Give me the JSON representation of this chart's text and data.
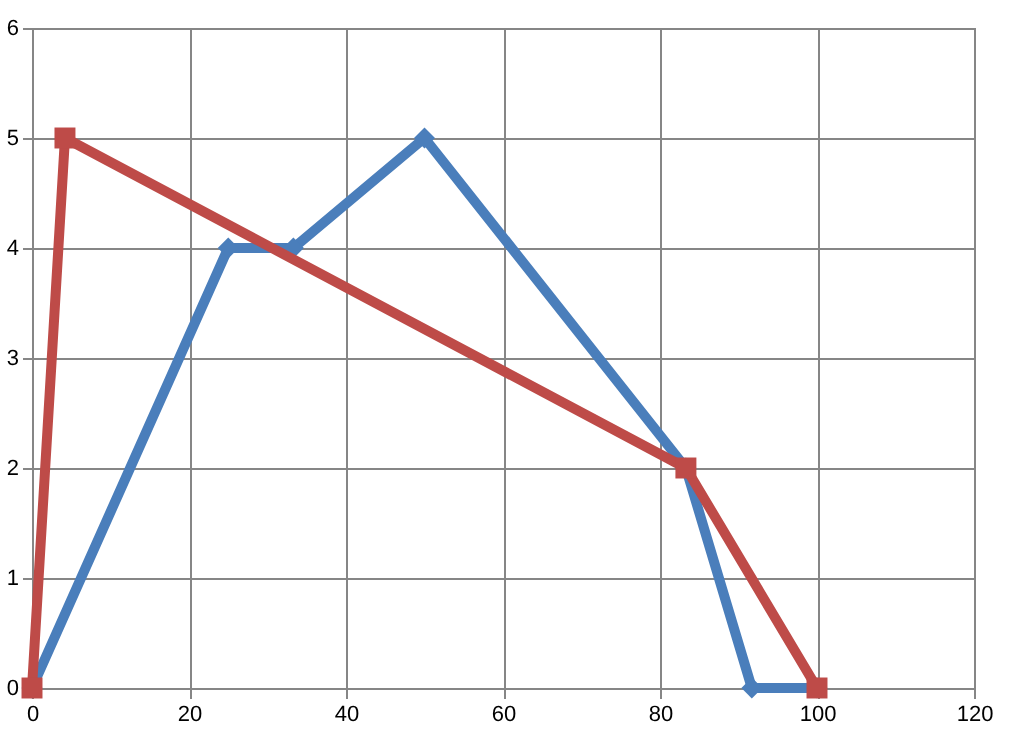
{
  "chart_data": {
    "type": "line",
    "xlim": [
      0,
      120
    ],
    "xticks": [
      0,
      20,
      40,
      60,
      80,
      100,
      120
    ],
    "ylim": [
      0,
      6
    ],
    "yticks": [
      0,
      1,
      2,
      3,
      4,
      5,
      6
    ],
    "grid": true,
    "line_style": "solid",
    "series": [
      {
        "color": "#4a7ebb",
        "marker": "diamond",
        "x": [
          0,
          25,
          33.3,
          50,
          83.3,
          91.7,
          100
        ],
        "values": [
          0,
          4,
          4,
          5,
          2,
          0,
          0
        ]
      },
      {
        "color": "#be4b48",
        "marker": "square",
        "x": [
          0,
          4.2,
          83.3,
          100
        ],
        "values": [
          0,
          5,
          2,
          0
        ]
      }
    ]
  }
}
